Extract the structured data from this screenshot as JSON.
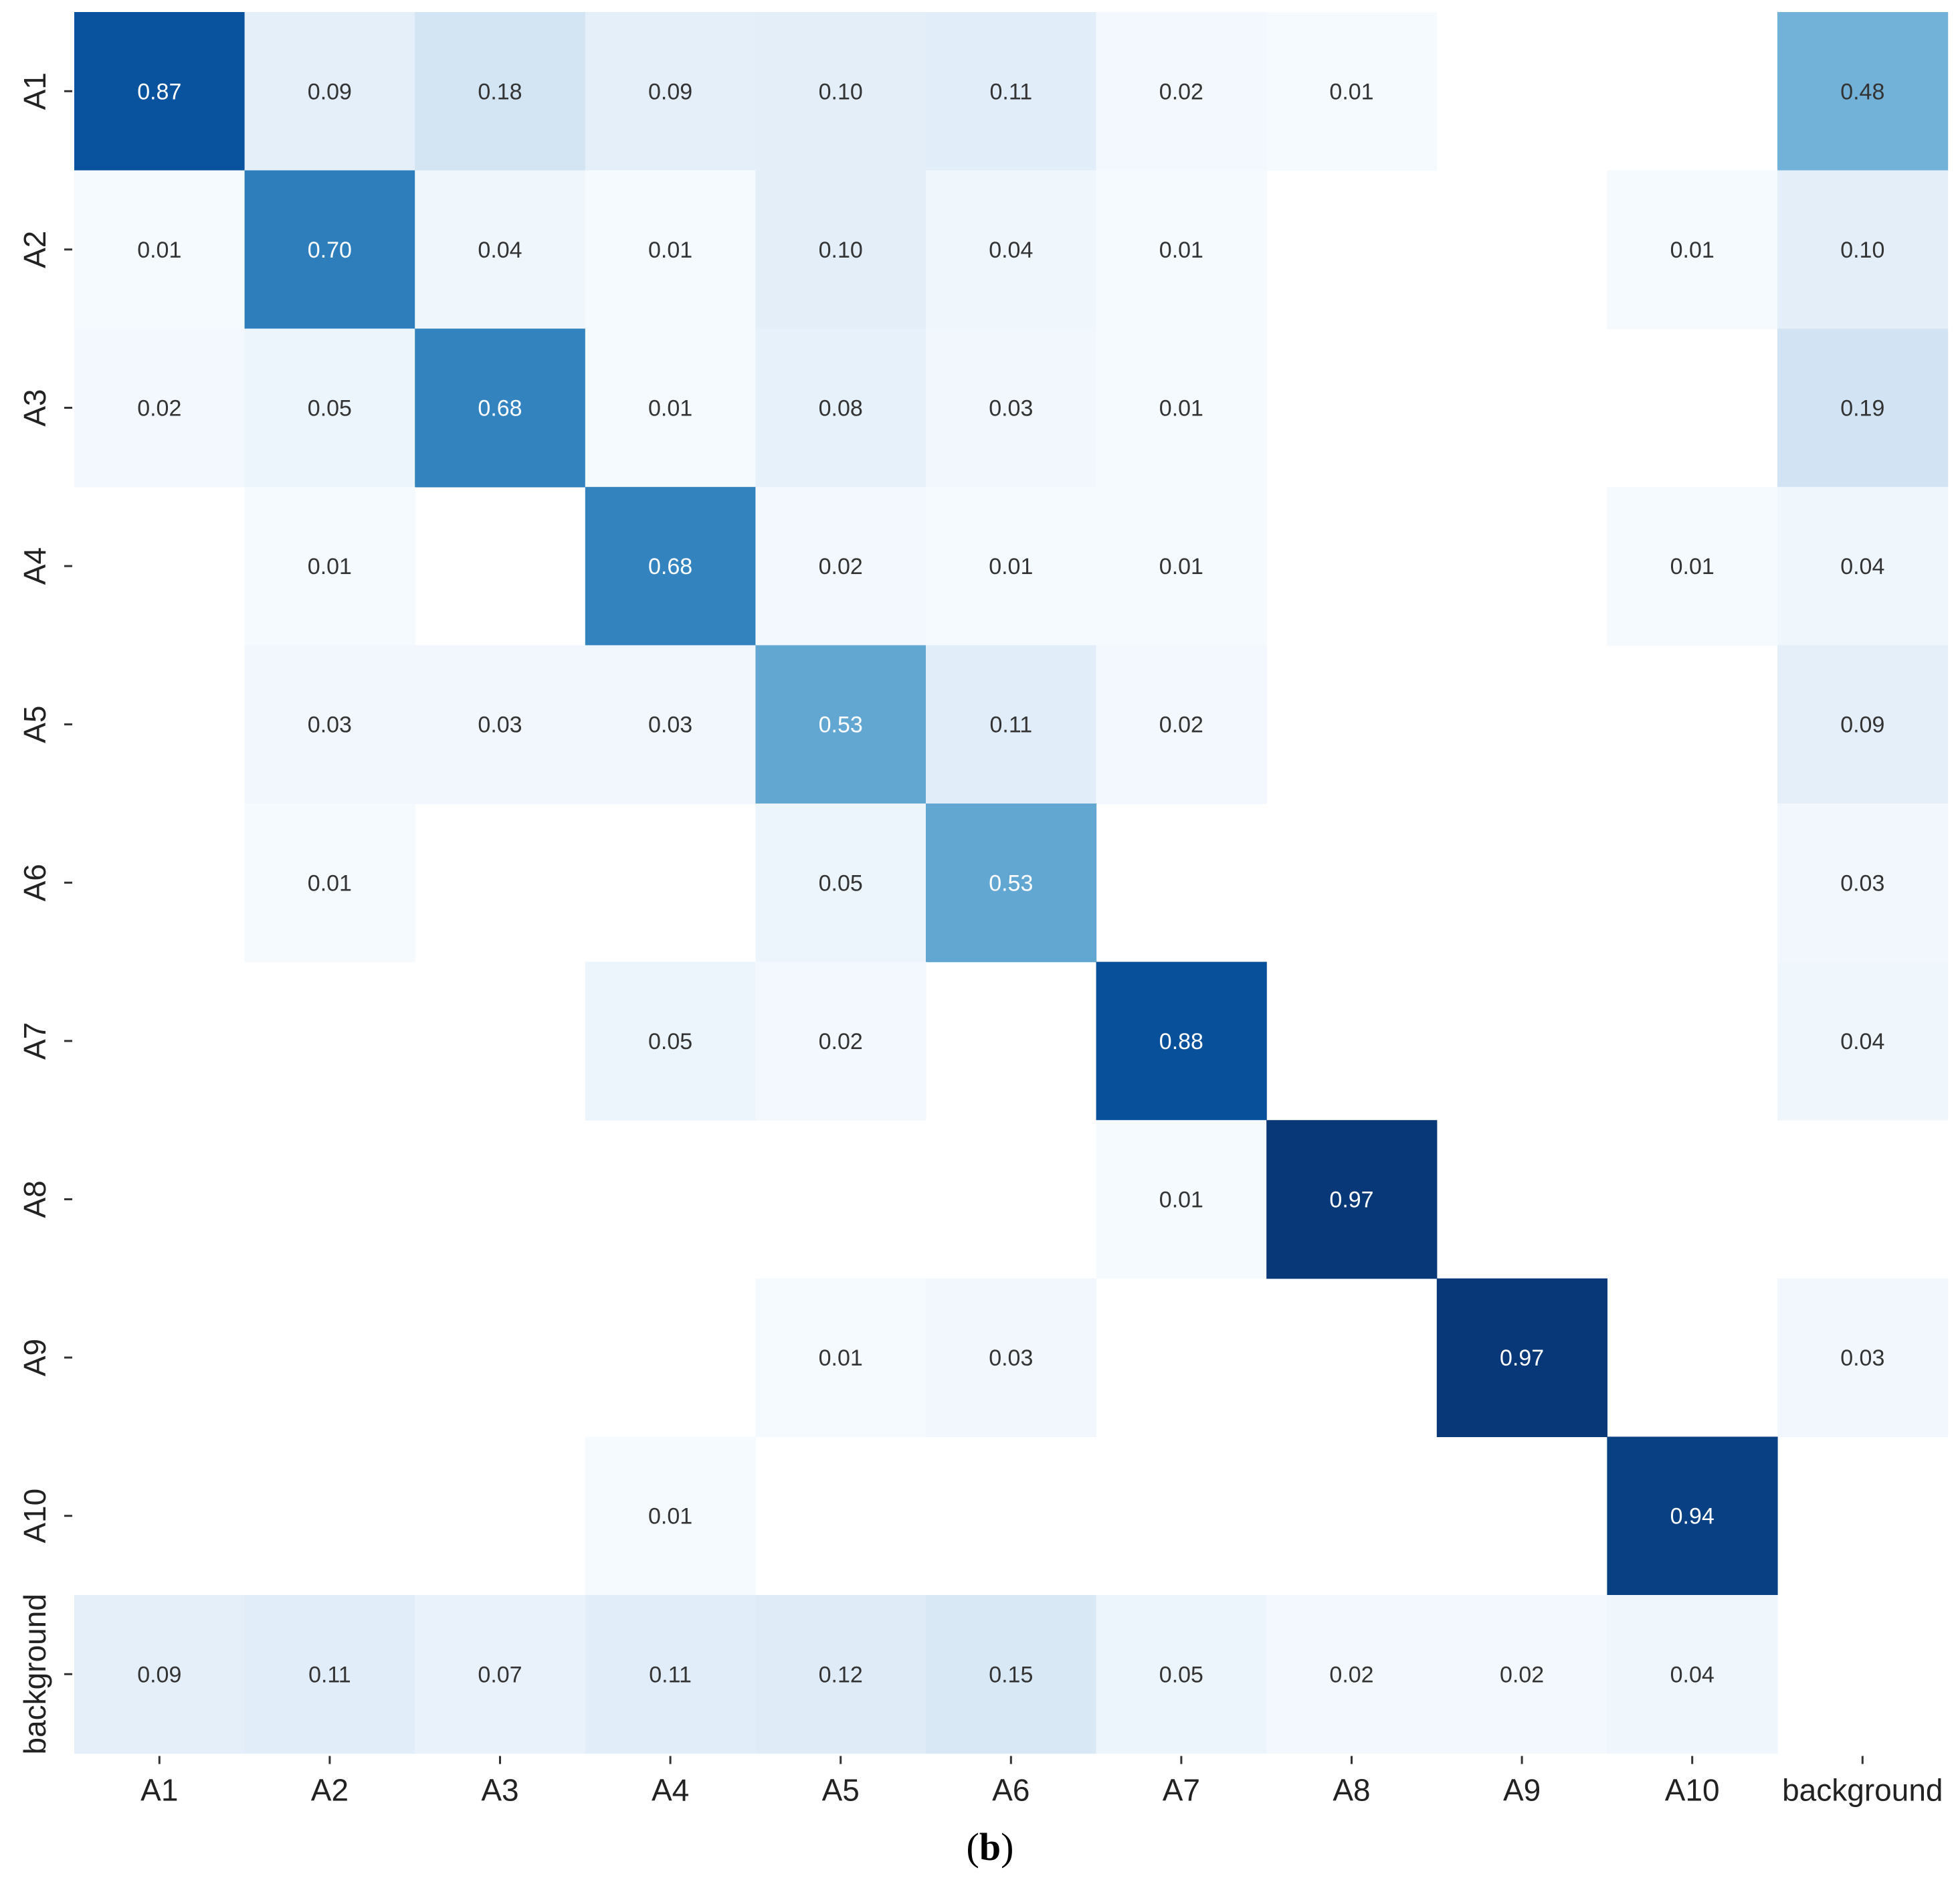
{
  "chart_data": {
    "type": "heatmap",
    "title": "",
    "xlabel": "",
    "ylabel": "",
    "caption_open": "(",
    "caption_letter": "b",
    "caption_close": ")",
    "x_categories": [
      "A1",
      "A2",
      "A3",
      "A4",
      "A5",
      "A6",
      "A7",
      "A8",
      "A9",
      "A10",
      "background"
    ],
    "y_categories": [
      "A1",
      "A2",
      "A3",
      "A4",
      "A5",
      "A6",
      "A7",
      "A8",
      "A9",
      "A10",
      "background"
    ],
    "values": [
      [
        0.87,
        0.09,
        0.18,
        0.09,
        0.1,
        0.11,
        0.02,
        0.01,
        null,
        null,
        0.48
      ],
      [
        0.01,
        0.7,
        0.04,
        0.01,
        0.1,
        0.04,
        0.01,
        null,
        null,
        0.01,
        0.1
      ],
      [
        0.02,
        0.05,
        0.68,
        0.01,
        0.08,
        0.03,
        0.01,
        null,
        null,
        null,
        0.19
      ],
      [
        null,
        0.01,
        null,
        0.68,
        0.02,
        0.01,
        0.01,
        null,
        null,
        0.01,
        0.04
      ],
      [
        null,
        0.03,
        0.03,
        0.03,
        0.53,
        0.11,
        0.02,
        null,
        null,
        null,
        0.09
      ],
      [
        null,
        0.01,
        null,
        null,
        0.05,
        0.53,
        null,
        null,
        null,
        null,
        0.03
      ],
      [
        null,
        null,
        null,
        0.05,
        0.02,
        null,
        0.88,
        null,
        null,
        null,
        0.04
      ],
      [
        null,
        null,
        null,
        null,
        null,
        null,
        0.01,
        0.97,
        null,
        null,
        null
      ],
      [
        null,
        null,
        null,
        null,
        0.01,
        0.03,
        null,
        null,
        0.97,
        null,
        0.03
      ],
      [
        null,
        null,
        null,
        0.01,
        null,
        null,
        null,
        null,
        null,
        0.94,
        null
      ],
      [
        0.09,
        0.11,
        0.07,
        0.11,
        0.12,
        0.15,
        0.05,
        0.02,
        0.02,
        0.04,
        null
      ]
    ],
    "value_range": [
      0,
      1
    ],
    "colormap": "Blues",
    "colors": [
      "#f7fbff",
      "#deebf7",
      "#c6dbef",
      "#9ecae1",
      "#6baed6",
      "#4292c6",
      "#2171b5",
      "#08519c",
      "#08306b"
    ],
    "grid": false,
    "legend": "none"
  }
}
